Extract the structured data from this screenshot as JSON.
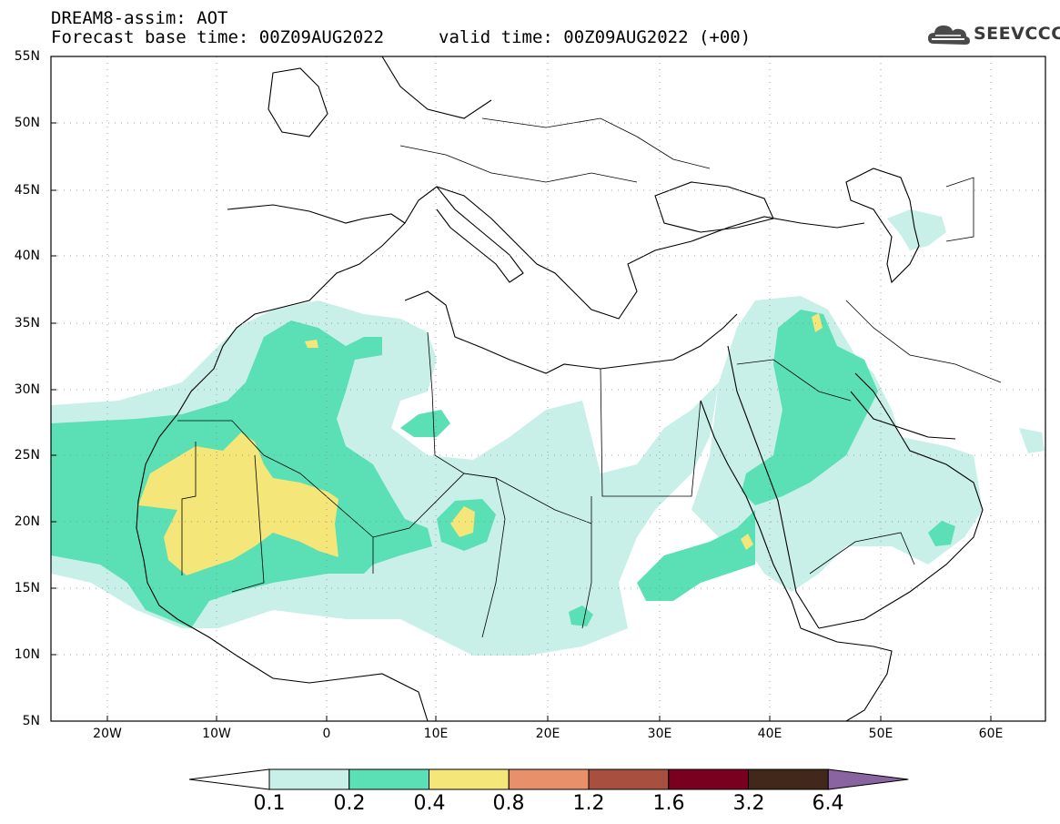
{
  "title": {
    "line1": "DREAM8-assim: AOT",
    "line2": "Forecast base time: 00Z09AUG2022",
    "valid": "valid time: 00Z09AUG2022 (+00)"
  },
  "logo": {
    "text": "SEEVCCC",
    "icon": "cloud-logo-icon"
  },
  "map": {
    "lon_range": [
      -25,
      65
    ],
    "lat_range": [
      5,
      55
    ],
    "y_ticks": [
      {
        "lat": 55,
        "label": "55N"
      },
      {
        "lat": 50,
        "label": "50N"
      },
      {
        "lat": 45,
        "label": "45N"
      },
      {
        "lat": 40,
        "label": "40N"
      },
      {
        "lat": 35,
        "label": "35N"
      },
      {
        "lat": 30,
        "label": "30N"
      },
      {
        "lat": 25,
        "label": "25N"
      },
      {
        "lat": 20,
        "label": "20N"
      },
      {
        "lat": 15,
        "label": "15N"
      },
      {
        "lat": 10,
        "label": "10N"
      },
      {
        "lat": 5,
        "label": "5N"
      }
    ],
    "x_ticks": [
      {
        "lon": -20,
        "label": "20W"
      },
      {
        "lon": -10,
        "label": "10W"
      },
      {
        "lon": 0,
        "label": "0"
      },
      {
        "lon": 10,
        "label": "10E"
      },
      {
        "lon": 20,
        "label": "20E"
      },
      {
        "lon": 30,
        "label": "30E"
      },
      {
        "lon": 40,
        "label": "40E"
      },
      {
        "lon": 50,
        "label": "50E"
      },
      {
        "lon": 60,
        "label": "60E"
      }
    ],
    "grid": true
  },
  "colorbar": {
    "colors": [
      "#ffffff",
      "#c8f0e8",
      "#5ae0b4",
      "#f5e67a",
      "#e8906a",
      "#a85040",
      "#7a0020",
      "#42281a",
      "#8a64a0"
    ],
    "labels": [
      "0.1",
      "0.2",
      "0.4",
      "0.8",
      "1.2",
      "1.6",
      "3.2",
      "6.4"
    ]
  }
}
